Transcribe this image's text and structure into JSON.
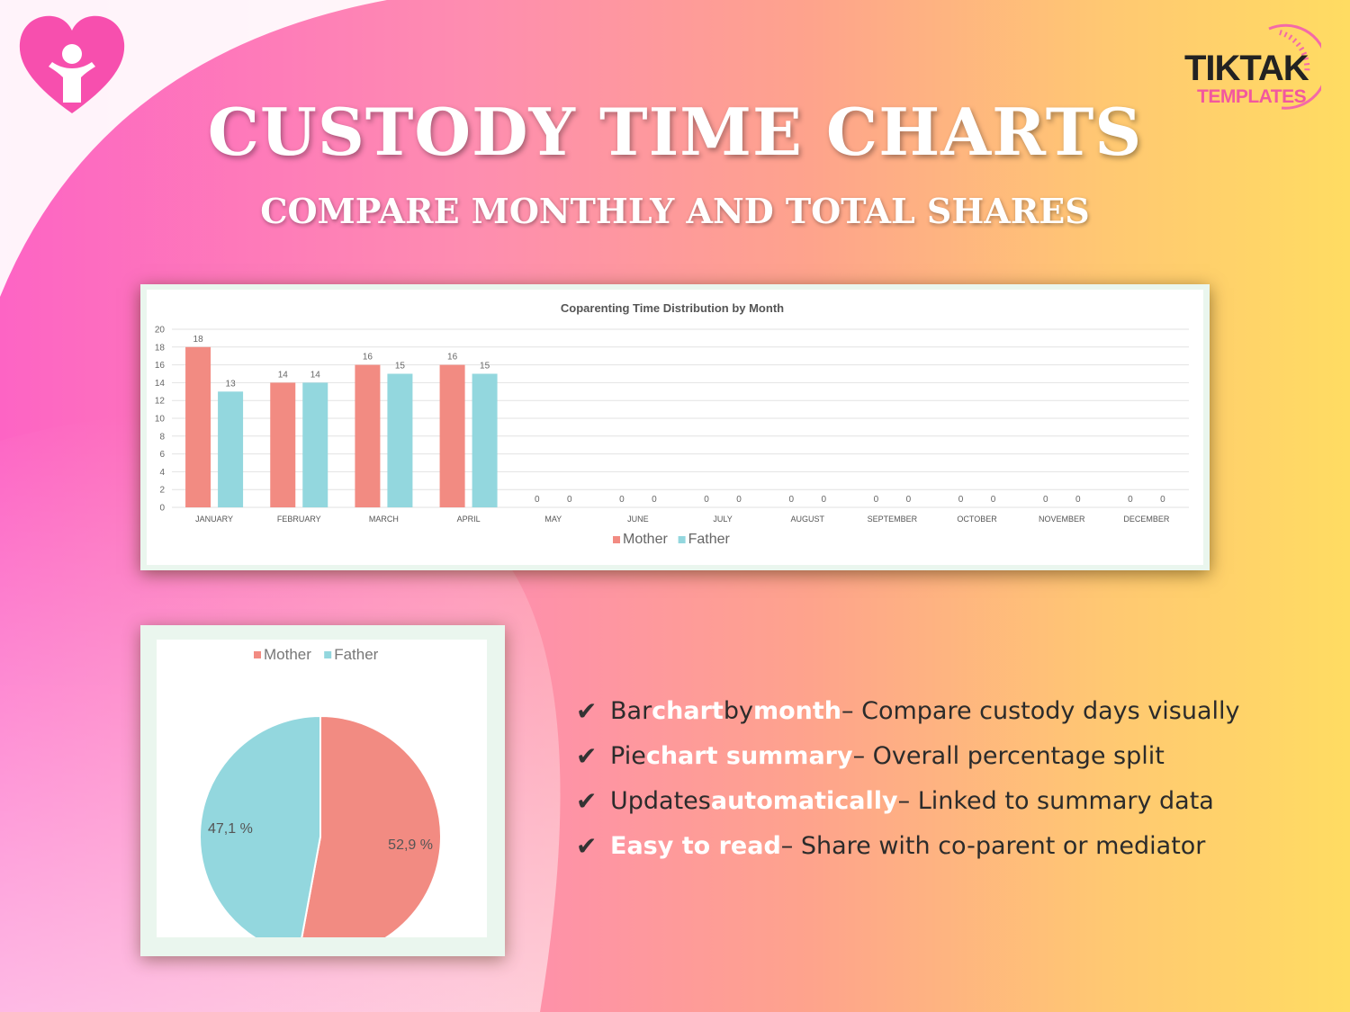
{
  "header": {
    "title": "CUSTODY TIME CHARTS",
    "subtitle": "COMPARE MONTHLY AND TOTAL SHARES",
    "brand_line1": "TIKTAK",
    "brand_line2": "TEMPLATES"
  },
  "colors": {
    "mother": "#f28b82",
    "father": "#93d7de",
    "highlight": "#ffffff",
    "brand_pink": "#f2589e"
  },
  "icons": [
    "heart-person-icon",
    "check-icon"
  ],
  "chart_data": [
    {
      "type": "bar",
      "title": "Coparenting Time Distribution by Month",
      "categories": [
        "JANUARY",
        "FEBRUARY",
        "MARCH",
        "APRIL",
        "MAY",
        "JUNE",
        "JULY",
        "AUGUST",
        "SEPTEMBER",
        "OCTOBER",
        "NOVEMBER",
        "DECEMBER"
      ],
      "series": [
        {
          "name": "Mother",
          "values": [
            18,
            14,
            16,
            16,
            0,
            0,
            0,
            0,
            0,
            0,
            0,
            0
          ]
        },
        {
          "name": "Father",
          "values": [
            13,
            14,
            15,
            15,
            0,
            0,
            0,
            0,
            0,
            0,
            0,
            0
          ]
        }
      ],
      "ylim": [
        0,
        20
      ],
      "yticks": [
        "0",
        "2",
        "4",
        "6",
        "8",
        "10",
        "12",
        "14",
        "16",
        "18",
        "20"
      ],
      "data_labels": true,
      "grid": true,
      "legend": "bottom-center"
    },
    {
      "type": "pie",
      "slices": [
        {
          "name": "Mother",
          "value": 52.9,
          "label": "52,9 %"
        },
        {
          "name": "Father",
          "value": 47.1,
          "label": "47,1 %"
        }
      ],
      "legend": "top-center"
    }
  ],
  "features": [
    {
      "parts": [
        {
          "t": "Bar ",
          "h": false
        },
        {
          "t": "chart",
          "h": true
        },
        {
          "t": " by ",
          "h": false
        },
        {
          "t": "month",
          "h": true
        },
        {
          "t": " – Compare custody days visually",
          "h": false
        }
      ]
    },
    {
      "parts": [
        {
          "t": "Pie ",
          "h": false
        },
        {
          "t": "chart summary",
          "h": true
        },
        {
          "t": " – Overall percentage split",
          "h": false
        }
      ]
    },
    {
      "parts": [
        {
          "t": "Updates ",
          "h": false
        },
        {
          "t": "automatically",
          "h": true
        },
        {
          "t": " – Linked to summary data",
          "h": false
        }
      ]
    },
    {
      "parts": [
        {
          "t": "Easy to read",
          "h": true
        },
        {
          "t": " – Share with co-parent or mediator",
          "h": false
        }
      ]
    }
  ]
}
